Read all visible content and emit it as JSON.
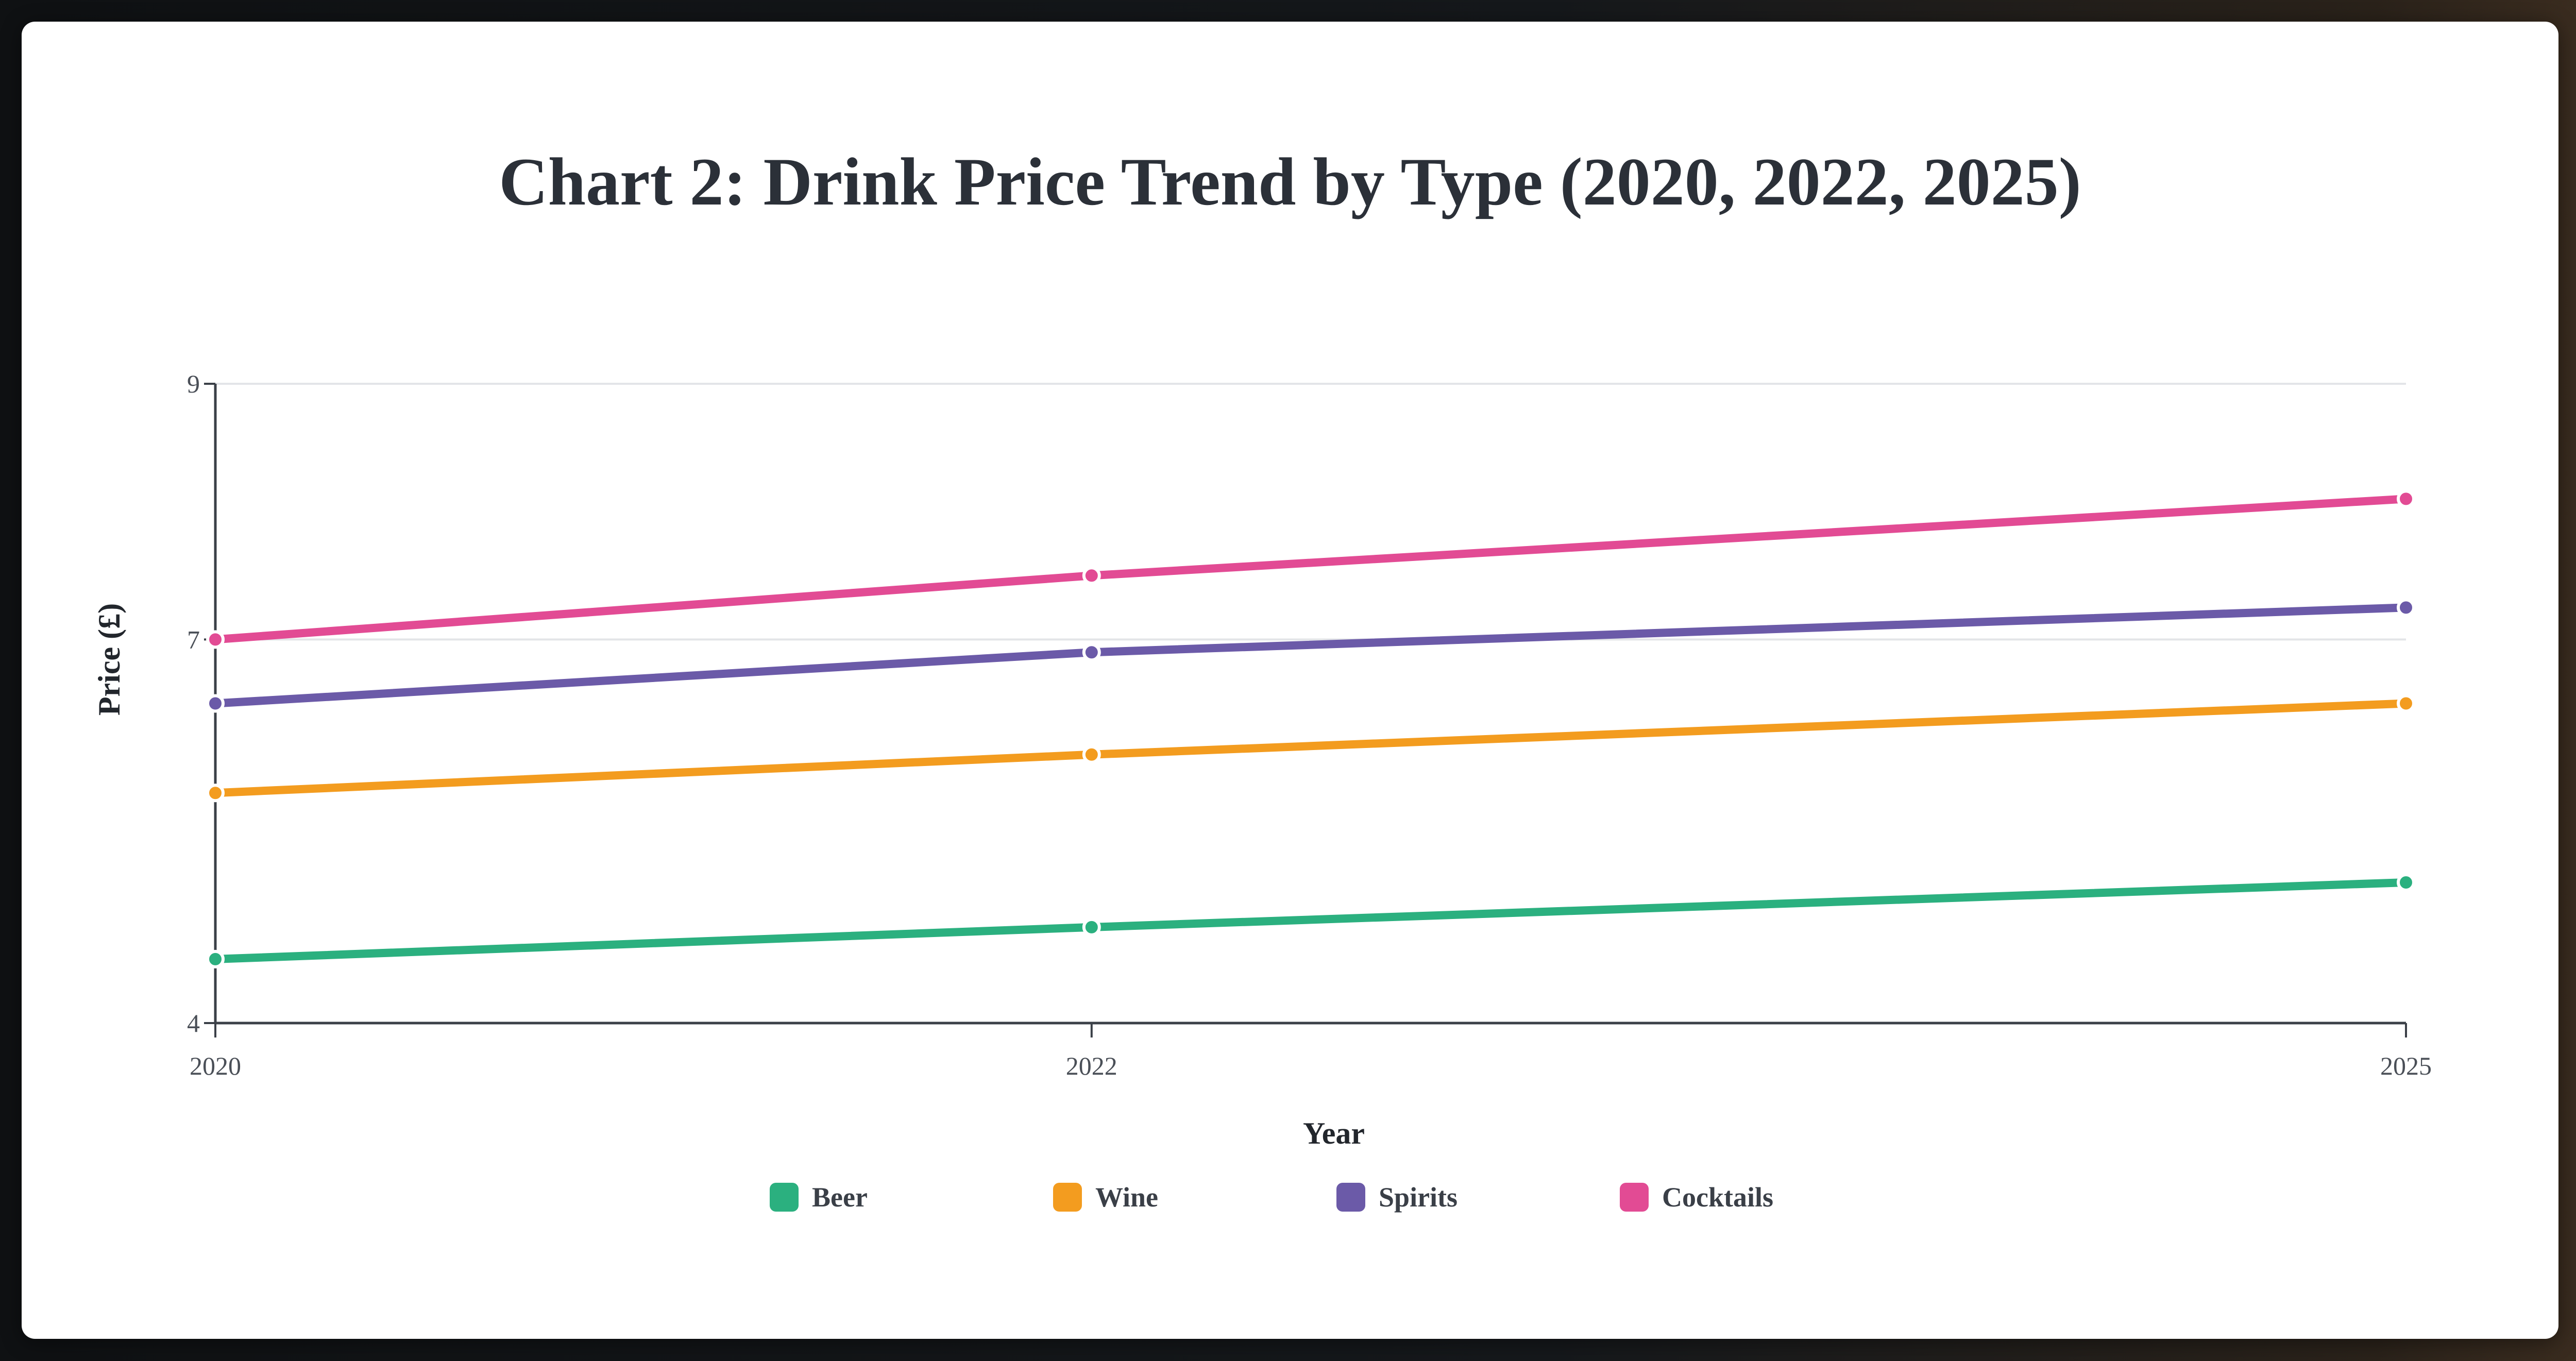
{
  "colors": {
    "Beer": "#2bb07f",
    "Wine": "#f39c1f",
    "Spirits": "#6b5aa8",
    "Cocktails": "#e24b94",
    "axis": "#3b4048",
    "grid": "#e3e5e8"
  },
  "chart_data": {
    "type": "line",
    "title": "Chart 2: Drink Price Trend by Type (2020, 2022, 2025)",
    "xlabel": "Year",
    "ylabel": "Price (£)",
    "x": [
      "2020",
      "2022",
      "2025"
    ],
    "x_numeric": [
      2020,
      2022,
      2025
    ],
    "xlim": [
      2020,
      2025
    ],
    "ylim": [
      4,
      9
    ],
    "yticks": [
      4,
      7,
      9
    ],
    "grid": true,
    "legend_position": "bottom-center",
    "series": [
      {
        "name": "Beer",
        "values": [
          4.5,
          4.75,
          5.1
        ]
      },
      {
        "name": "Wine",
        "values": [
          5.8,
          6.1,
          6.5
        ]
      },
      {
        "name": "Spirits",
        "values": [
          6.5,
          6.9,
          7.25
        ]
      },
      {
        "name": "Cocktails",
        "values": [
          7.0,
          7.5,
          8.1
        ]
      }
    ]
  }
}
